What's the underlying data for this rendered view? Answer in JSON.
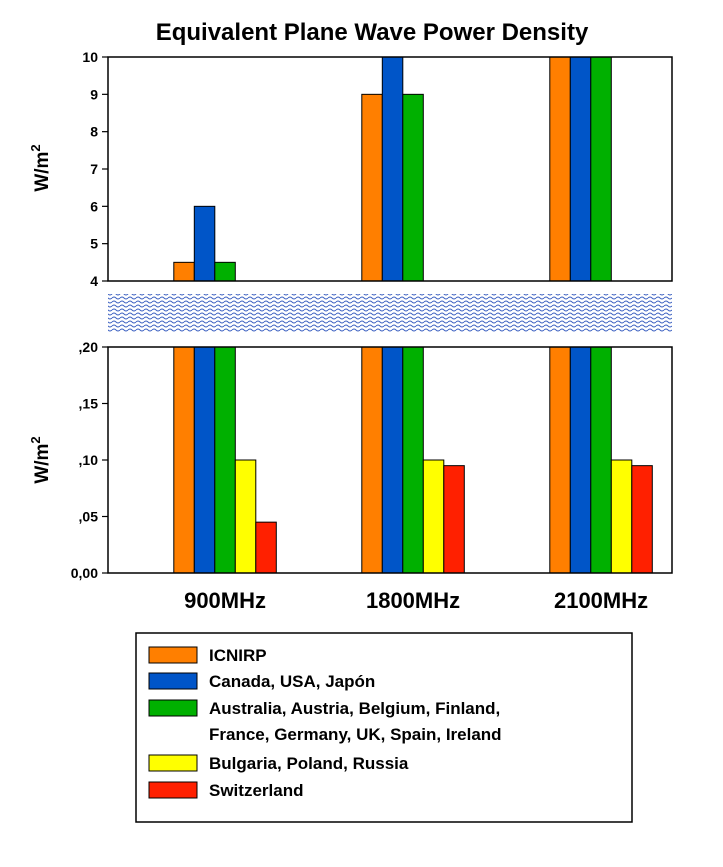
{
  "chart_data": {
    "type": "bar",
    "title": "Equivalent Plane Wave Power Density",
    "ylabel_base": "W/m",
    "ylabel_sup": "2",
    "categories": [
      "900MHz",
      "1800MHz",
      "2100MHz"
    ],
    "axis_break": true,
    "upper_panel": {
      "ylim": [
        4,
        10
      ],
      "yticks": [
        "4",
        "5",
        "6",
        "7",
        "8",
        "9",
        "10"
      ]
    },
    "lower_panel": {
      "ylim": [
        0,
        0.2
      ],
      "yticks": [
        "0,00",
        ",05",
        ",10",
        ",15",
        ",20"
      ]
    },
    "series": [
      {
        "name": "ICNIRP",
        "color": "#FF7F00",
        "values": [
          4.5,
          9,
          10
        ]
      },
      {
        "name": "Canada, USA, Japón",
        "color": "#0055C8",
        "values": [
          6,
          10,
          10
        ]
      },
      {
        "name": "Australia, Austria, Belgium, Finland,",
        "name_line2": "France, Germany, UK, Spain, Ireland",
        "color": "#00B000",
        "values": [
          4.5,
          9,
          10
        ]
      },
      {
        "name": "Bulgaria, Poland, Russia",
        "color": "#FFFF00",
        "values": [
          0.1,
          0.1,
          0.1
        ]
      },
      {
        "name": "Switzerland",
        "color": "#FF2000",
        "values": [
          0.045,
          0.095,
          0.095
        ]
      }
    ],
    "legend_position": "bottom"
  }
}
